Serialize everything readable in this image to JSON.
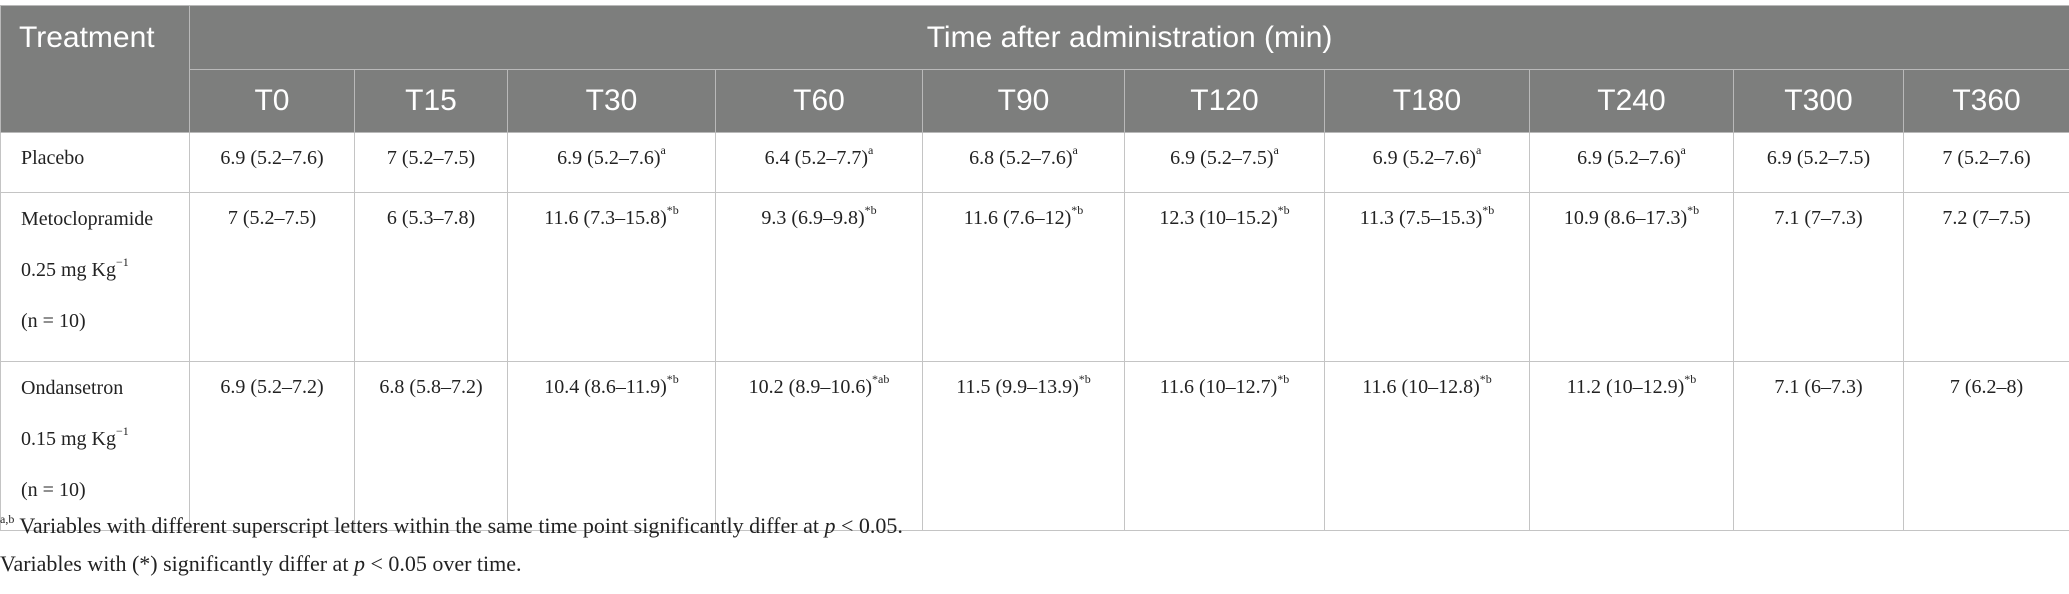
{
  "header": {
    "treatment": "Treatment",
    "span": "Time after administration (min)",
    "times": [
      "T0",
      "T15",
      "T30",
      "T60",
      "T90",
      "T120",
      "T180",
      "T240",
      "T300",
      "T360"
    ]
  },
  "rows": [
    {
      "name_lines": [
        "Placebo"
      ],
      "cells": [
        {
          "v": "6.9 (5.2–7.6)",
          "s": ""
        },
        {
          "v": "7 (5.2–7.5)",
          "s": ""
        },
        {
          "v": "6.9 (5.2–7.6)",
          "s": "a"
        },
        {
          "v": "6.4 (5.2–7.7)",
          "s": "a"
        },
        {
          "v": "6.8 (5.2–7.6)",
          "s": "a"
        },
        {
          "v": "6.9 (5.2–7.5)",
          "s": "a"
        },
        {
          "v": "6.9 (5.2–7.6)",
          "s": "a"
        },
        {
          "v": "6.9 (5.2–7.6)",
          "s": "a"
        },
        {
          "v": "6.9 (5.2–7.5)",
          "s": ""
        },
        {
          "v": "7 (5.2–7.6)",
          "s": ""
        }
      ]
    },
    {
      "name_lines": [
        "Metoclopramide",
        "0.25 mg Kg",
        "(n = 10)"
      ],
      "name_sup": "−1",
      "cells": [
        {
          "v": "7 (5.2–7.5)",
          "s": ""
        },
        {
          "v": "6 (5.3–7.8)",
          "s": ""
        },
        {
          "v": "11.6 (7.3–15.8)",
          "s": "*b"
        },
        {
          "v": "9.3 (6.9–9.8)",
          "s": "*b"
        },
        {
          "v": "11.6 (7.6–12)",
          "s": "*b"
        },
        {
          "v": "12.3 (10–15.2)",
          "s": "*b"
        },
        {
          "v": "11.3 (7.5–15.3)",
          "s": "*b"
        },
        {
          "v": "10.9 (8.6–17.3)",
          "s": "*b"
        },
        {
          "v": "7.1 (7–7.3)",
          "s": ""
        },
        {
          "v": "7.2 (7–7.5)",
          "s": ""
        }
      ]
    },
    {
      "name_lines": [
        "Ondansetron",
        "0.15 mg Kg",
        "(n = 10)"
      ],
      "name_sup": "−1",
      "cells": [
        {
          "v": "6.9 (5.2–7.2)",
          "s": ""
        },
        {
          "v": "6.8 (5.8–7.2)",
          "s": ""
        },
        {
          "v": "10.4 (8.6–11.9)",
          "s": "*b"
        },
        {
          "v": "10.2 (8.9–10.6)",
          "s": "*ab"
        },
        {
          "v": "11.5 (9.9–13.9)",
          "s": "*b"
        },
        {
          "v": "11.6 (10–12.7)",
          "s": "*b"
        },
        {
          "v": "11.6 (10–12.8)",
          "s": "*b"
        },
        {
          "v": "11.2 (10–12.9)",
          "s": "*b"
        },
        {
          "v": "7.1 (6–7.3)",
          "s": ""
        },
        {
          "v": "7 (6.2–8)",
          "s": ""
        }
      ]
    }
  ],
  "footnotes": {
    "f1_sup": "a,b",
    "f1_text": " Variables with different superscript letters within the same time point significantly differ at ",
    "f1_p": "p",
    "f1_tail": " < 0.05.",
    "f2_text": "Variables with (*) significantly differ at ",
    "f2_p": "p",
    "f2_tail": " < 0.05 over time."
  },
  "colors": {
    "header_bg": "#7d7e7d",
    "border": "#c4c4c4"
  }
}
